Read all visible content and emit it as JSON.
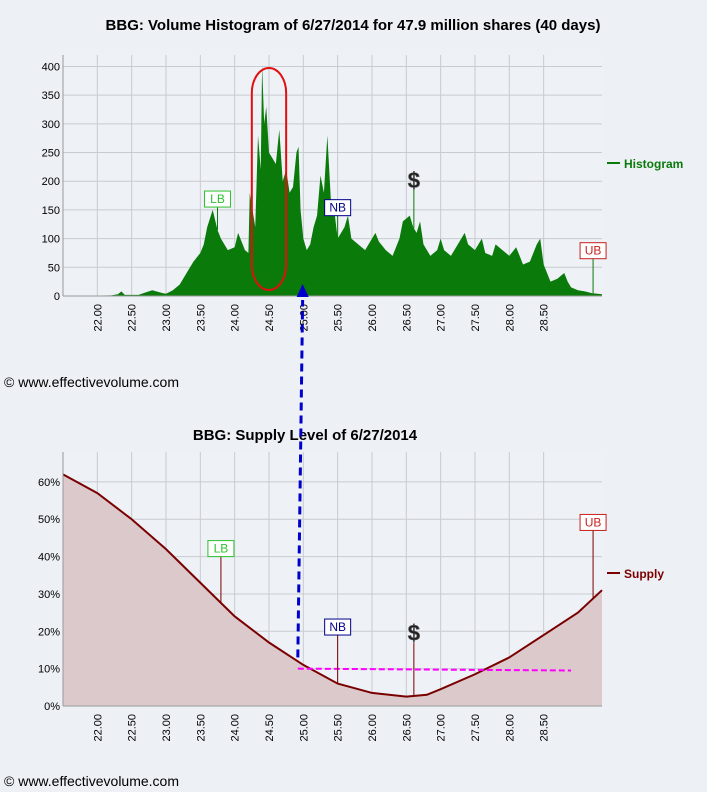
{
  "histogram": {
    "title": "BBG: Volume Histogram of 6/27/2014 for 47.9 million shares (40 days)",
    "legend": "Histogram",
    "color": "#0a7a0a"
  },
  "supply": {
    "title": "BBG: Supply Level of 6/27/2014",
    "legend": "Supply",
    "color": "#7a0000",
    "fill": "#dcc9cc"
  },
  "copyright_top": "© www.effectivevolume.com",
  "copyright_bottom": "© www.effectivevolume.com",
  "markers": {
    "lb": "LB",
    "nb": "NB",
    "ub": "UB",
    "dollar": "$"
  },
  "chart_data": [
    {
      "type": "area",
      "name": "histogram",
      "title": "BBG: Volume Histogram of 6/27/2014 for 47.9 million shares (40 days)",
      "xlim": [
        21.5,
        29.35
      ],
      "ylim": [
        0,
        420
      ],
      "x_ticks": [
        "22.00",
        "22.50",
        "23.00",
        "23.50",
        "24.00",
        "24.50",
        "25.00",
        "25.50",
        "26.00",
        "26.50",
        "27.00",
        "27.50",
        "28.00",
        "28.50"
      ],
      "y_ticks": [
        0,
        50,
        100,
        150,
        200,
        250,
        300,
        350,
        400
      ],
      "series": [
        {
          "name": "Histogram",
          "points": [
            [
              21.5,
              0
            ],
            [
              22.2,
              1
            ],
            [
              22.3,
              3
            ],
            [
              22.35,
              8
            ],
            [
              22.4,
              2
            ],
            [
              22.6,
              2
            ],
            [
              22.7,
              6
            ],
            [
              22.8,
              10
            ],
            [
              22.95,
              5
            ],
            [
              23.0,
              4
            ],
            [
              23.1,
              10
            ],
            [
              23.2,
              20
            ],
            [
              23.3,
              40
            ],
            [
              23.4,
              60
            ],
            [
              23.5,
              75
            ],
            [
              23.55,
              90
            ],
            [
              23.6,
              120
            ],
            [
              23.68,
              150
            ],
            [
              23.75,
              115
            ],
            [
              23.8,
              100
            ],
            [
              23.9,
              80
            ],
            [
              24.0,
              85
            ],
            [
              24.05,
              110
            ],
            [
              24.1,
              95
            ],
            [
              24.15,
              80
            ],
            [
              24.2,
              75
            ],
            [
              24.22,
              180
            ],
            [
              24.3,
              120
            ],
            [
              24.34,
              280
            ],
            [
              24.38,
              220
            ],
            [
              24.4,
              402
            ],
            [
              24.43,
              300
            ],
            [
              24.46,
              330
            ],
            [
              24.5,
              250
            ],
            [
              24.55,
              240
            ],
            [
              24.6,
              230
            ],
            [
              24.65,
              290
            ],
            [
              24.7,
              200
            ],
            [
              24.75,
              220
            ],
            [
              24.8,
              180
            ],
            [
              24.85,
              190
            ],
            [
              24.9,
              250
            ],
            [
              24.93,
              260
            ],
            [
              24.96,
              150
            ],
            [
              25.0,
              100
            ],
            [
              25.05,
              80
            ],
            [
              25.1,
              90
            ],
            [
              25.15,
              120
            ],
            [
              25.2,
              140
            ],
            [
              25.25,
              210
            ],
            [
              25.3,
              180
            ],
            [
              25.35,
              280
            ],
            [
              25.4,
              170
            ],
            [
              25.45,
              150
            ],
            [
              25.5,
              100
            ],
            [
              25.6,
              120
            ],
            [
              25.65,
              140
            ],
            [
              25.7,
              100
            ],
            [
              25.8,
              90
            ],
            [
              25.9,
              80
            ],
            [
              26.0,
              100
            ],
            [
              26.05,
              110
            ],
            [
              26.1,
              95
            ],
            [
              26.2,
              80
            ],
            [
              26.3,
              70
            ],
            [
              26.4,
              100
            ],
            [
              26.45,
              130
            ],
            [
              26.55,
              140
            ],
            [
              26.6,
              120
            ],
            [
              26.65,
              110
            ],
            [
              26.7,
              130
            ],
            [
              26.75,
              90
            ],
            [
              26.85,
              70
            ],
            [
              26.95,
              80
            ],
            [
              27.0,
              100
            ],
            [
              27.05,
              80
            ],
            [
              27.15,
              70
            ],
            [
              27.25,
              90
            ],
            [
              27.35,
              110
            ],
            [
              27.4,
              90
            ],
            [
              27.5,
              80
            ],
            [
              27.6,
              100
            ],
            [
              27.65,
              75
            ],
            [
              27.75,
              70
            ],
            [
              27.8,
              90
            ],
            [
              27.9,
              80
            ],
            [
              28.0,
              70
            ],
            [
              28.1,
              85
            ],
            [
              28.2,
              55
            ],
            [
              28.3,
              60
            ],
            [
              28.4,
              90
            ],
            [
              28.45,
              100
            ],
            [
              28.5,
              55
            ],
            [
              28.6,
              25
            ],
            [
              28.7,
              30
            ],
            [
              28.8,
              40
            ],
            [
              28.85,
              25
            ],
            [
              28.9,
              15
            ],
            [
              29.0,
              10
            ],
            [
              29.1,
              8
            ],
            [
              29.2,
              5
            ],
            [
              29.35,
              3
            ]
          ]
        }
      ],
      "annotations": [
        {
          "label": "LB",
          "x": 23.75,
          "y": 155
        },
        {
          "label": "NB",
          "x": 25.5,
          "y": 140
        },
        {
          "label": "$",
          "x": 26.61,
          "y": 185
        },
        {
          "label": "UB",
          "x": 29.22,
          "y": 65
        }
      ]
    },
    {
      "type": "area",
      "name": "supply",
      "title": "BBG: Supply Level of 6/27/2014",
      "xlim": [
        21.5,
        29.35
      ],
      "ylim": [
        0,
        0.68
      ],
      "x_ticks": [
        "22.00",
        "22.50",
        "23.00",
        "23.50",
        "24.00",
        "24.50",
        "25.00",
        "25.50",
        "26.00",
        "26.50",
        "27.00",
        "27.50",
        "28.00",
        "28.50"
      ],
      "y_ticks": [
        "0%",
        "10%",
        "20%",
        "30%",
        "40%",
        "50%",
        "60%"
      ],
      "series": [
        {
          "name": "Supply",
          "points": [
            [
              21.5,
              0.62
            ],
            [
              22.0,
              0.57
            ],
            [
              22.5,
              0.5
            ],
            [
              23.0,
              0.42
            ],
            [
              23.5,
              0.33
            ],
            [
              24.0,
              0.24
            ],
            [
              24.5,
              0.17
            ],
            [
              25.0,
              0.11
            ],
            [
              25.5,
              0.06
            ],
            [
              26.0,
              0.035
            ],
            [
              26.5,
              0.025
            ],
            [
              26.8,
              0.03
            ],
            [
              27.0,
              0.045
            ],
            [
              27.5,
              0.085
            ],
            [
              28.0,
              0.13
            ],
            [
              28.5,
              0.19
            ],
            [
              29.0,
              0.25
            ],
            [
              29.35,
              0.31
            ]
          ]
        }
      ],
      "trend_line": [
        [
          24.92,
          0.1
        ],
        [
          28.9,
          0.095
        ]
      ],
      "annotations": [
        {
          "label": "LB",
          "x": 23.8,
          "y": 0.4
        },
        {
          "label": "NB",
          "x": 25.5,
          "y": 0.19
        },
        {
          "label": "$",
          "x": 26.61,
          "y": 0.17
        },
        {
          "label": "UB",
          "x": 29.22,
          "y": 0.47
        }
      ]
    }
  ]
}
